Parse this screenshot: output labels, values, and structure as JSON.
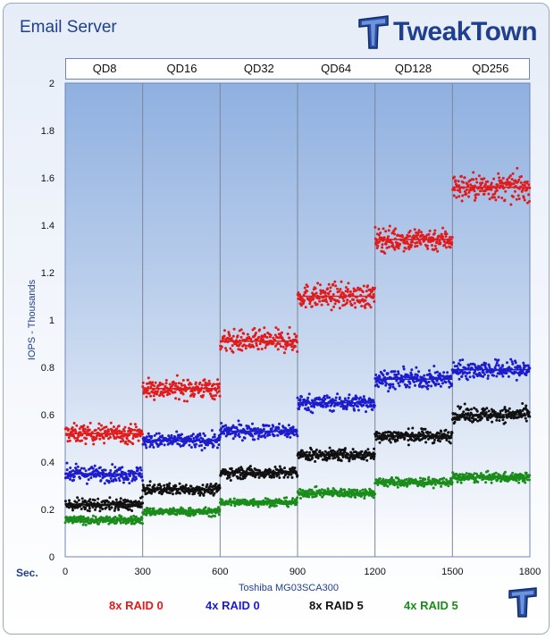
{
  "title": "Email Server",
  "brand": {
    "name": "TweakTown",
    "logo_icon": "tweaktown-t-logo-icon",
    "color": "#1f3f8f"
  },
  "qd_labels": [
    "QD8",
    "QD16",
    "QD32",
    "QD64",
    "QD128",
    "QD256"
  ],
  "chart_data": {
    "type": "scatter",
    "title": "Email Server",
    "xlabel": "Toshiba MG03SCA300",
    "ylabel": "IOPS - Thousands",
    "x_unit_label": "Sec.",
    "xlim": [
      0,
      1800
    ],
    "ylim": [
      0,
      2
    ],
    "x_ticks": [
      0,
      300,
      600,
      900,
      1200,
      1500,
      1800
    ],
    "y_ticks": [
      0,
      0.2,
      0.4,
      0.6,
      0.8,
      1,
      1.2,
      1.4,
      1.6,
      1.8,
      2
    ],
    "x_tick_labels": [
      "0",
      "300",
      "600",
      "900",
      "1200",
      "1500",
      "1800"
    ],
    "y_tick_labels": [
      "0",
      "0.2",
      "0.4",
      "0.6",
      "0.8",
      "1",
      "1.2",
      "1.4",
      "1.6",
      "1.8",
      "2"
    ],
    "segments": [
      {
        "label": "QD8",
        "start": 0,
        "end": 300
      },
      {
        "label": "QD16",
        "start": 300,
        "end": 600
      },
      {
        "label": "QD32",
        "start": 600,
        "end": 900
      },
      {
        "label": "QD64",
        "start": 900,
        "end": 1200
      },
      {
        "label": "QD128",
        "start": 1200,
        "end": 1500
      },
      {
        "label": "QD256",
        "start": 1500,
        "end": 1800
      }
    ],
    "series": [
      {
        "name": "8x RAID 0",
        "color": "#e11b1b",
        "segment_means": [
          0.52,
          0.71,
          0.91,
          1.1,
          1.34,
          1.56
        ],
        "spread": [
          0.035,
          0.038,
          0.042,
          0.045,
          0.045,
          0.05
        ]
      },
      {
        "name": "4x RAID 0",
        "color": "#1c1ccc",
        "segment_means": [
          0.35,
          0.49,
          0.53,
          0.65,
          0.75,
          0.79
        ],
        "spread": [
          0.03,
          0.028,
          0.028,
          0.03,
          0.035,
          0.035
        ]
      },
      {
        "name": "8x RAID 5",
        "color": "#111111",
        "segment_means": [
          0.22,
          0.285,
          0.355,
          0.43,
          0.51,
          0.6
        ],
        "spread": [
          0.022,
          0.02,
          0.022,
          0.022,
          0.025,
          0.028
        ]
      },
      {
        "name": "4x RAID 5",
        "color": "#1a8c1a",
        "segment_means": [
          0.155,
          0.19,
          0.23,
          0.27,
          0.315,
          0.335
        ],
        "spread": [
          0.015,
          0.015,
          0.015,
          0.017,
          0.017,
          0.018
        ]
      }
    ]
  }
}
